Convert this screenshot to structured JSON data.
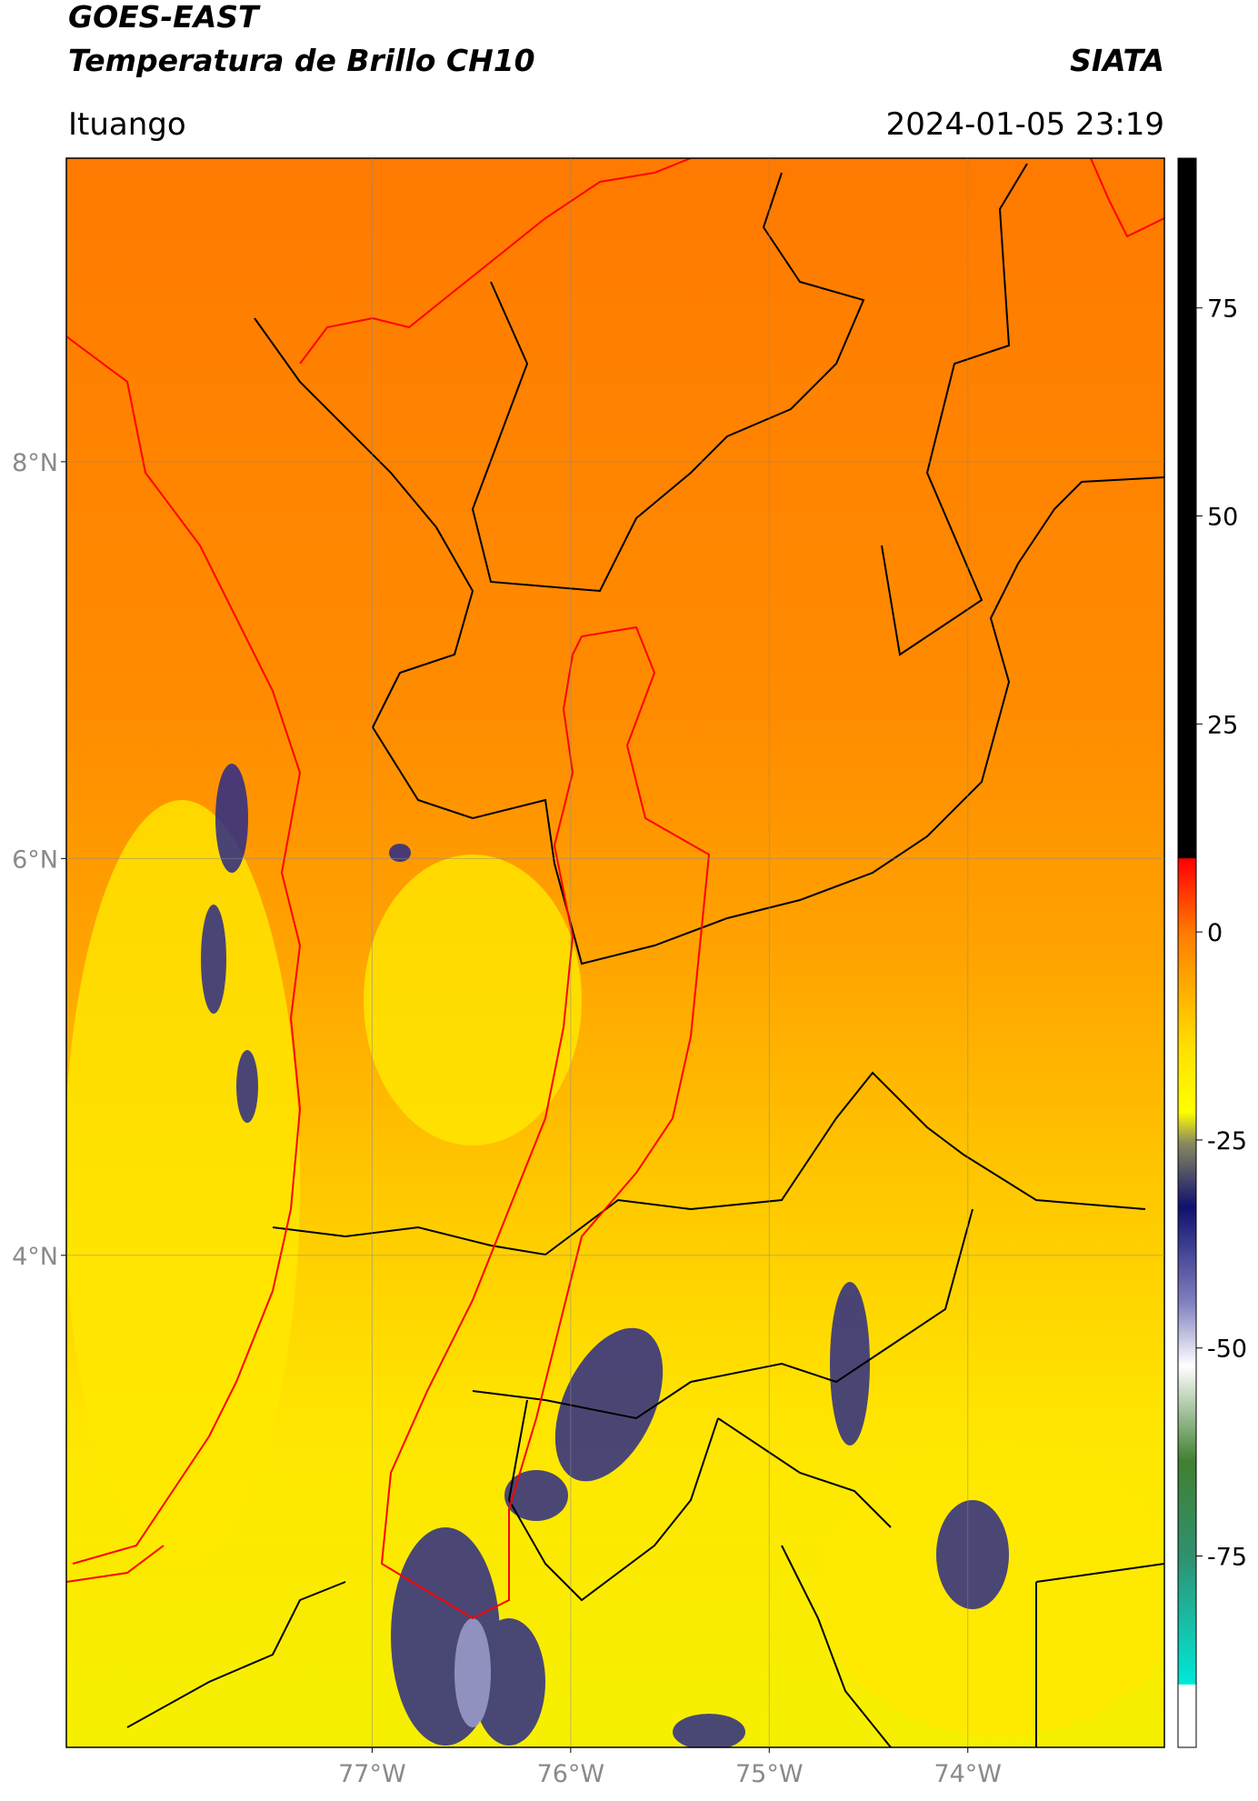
{
  "header": {
    "title_line1": "GOES-EAST",
    "title_line2": "Temperatura de Brillo CH10",
    "source": "SIATA",
    "region": "Ituango",
    "datetime": "2024-01-05 23:19"
  },
  "map": {
    "xlim": [
      -78.54,
      -73.01
    ],
    "ylim": [
      1.52,
      9.53
    ],
    "xticks": [
      {
        "value": -77,
        "label": "77°W"
      },
      {
        "value": -76,
        "label": "76°W"
      },
      {
        "value": -75,
        "label": "75°W"
      },
      {
        "value": -74,
        "label": "74°W"
      }
    ],
    "yticks": [
      {
        "value": 4,
        "label": "4°N"
      },
      {
        "value": 6,
        "label": "6°N"
      },
      {
        "value": 8,
        "label": "8°N"
      }
    ],
    "grid": true
  },
  "colorbar": {
    "lim": [
      -98,
      93
    ],
    "ticks": [
      -75,
      -50,
      -25,
      0,
      25,
      50,
      75
    ]
  }
}
